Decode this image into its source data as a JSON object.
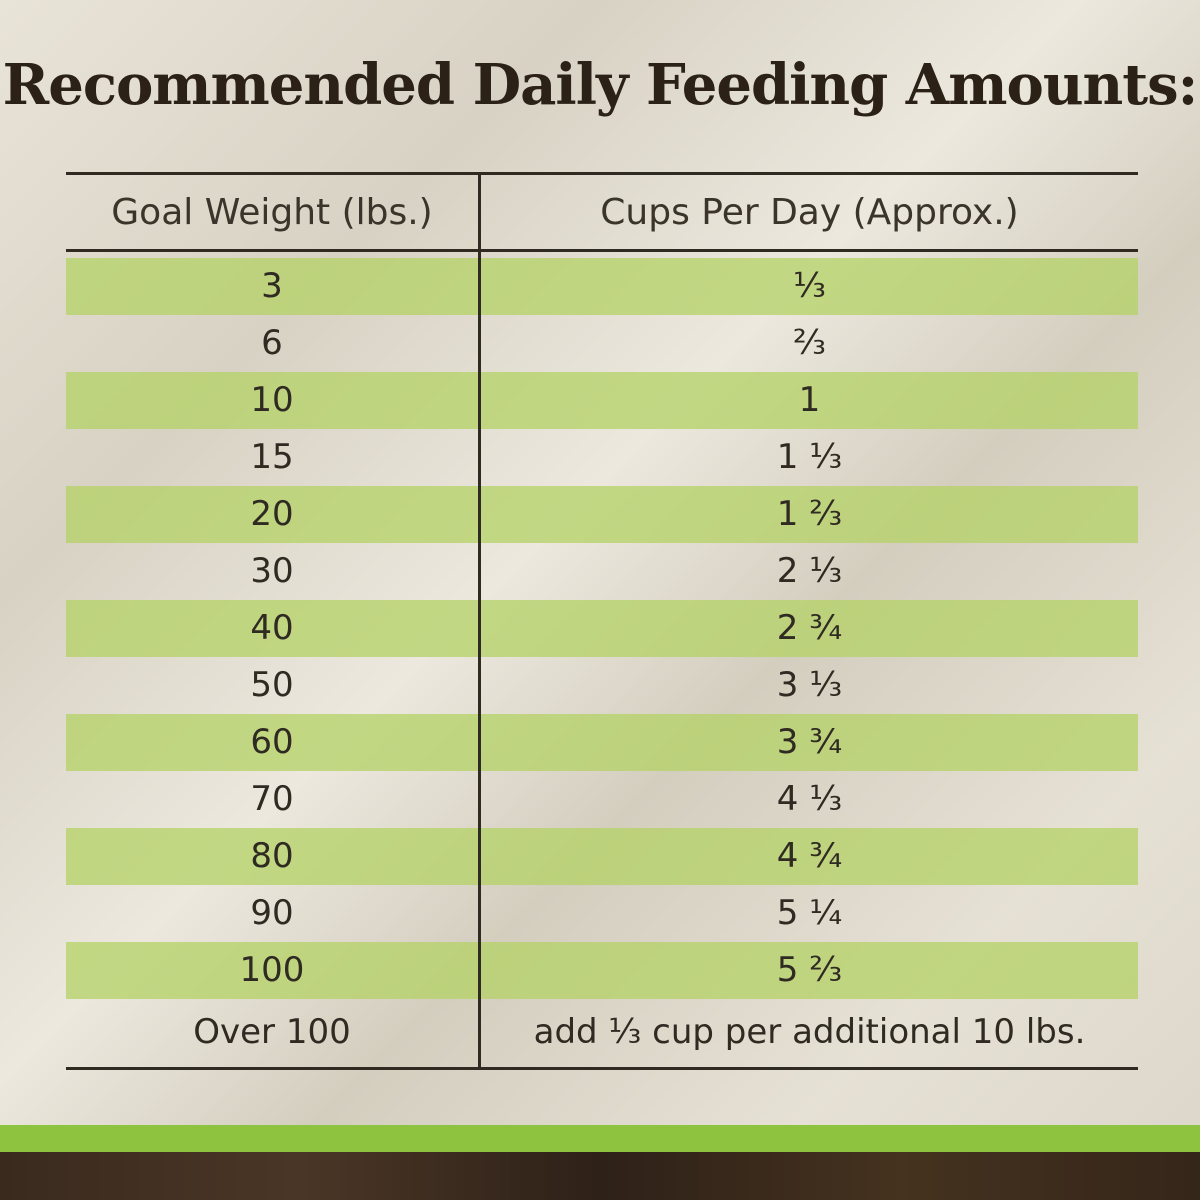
{
  "header": {
    "title": "Recommended Daily Feeding Amounts:"
  },
  "table": {
    "columns": [
      "Goal Weight (lbs.)",
      "Cups Per Day (Approx.)"
    ],
    "rows": [
      [
        "3",
        "⅓"
      ],
      [
        "6",
        "⅔"
      ],
      [
        "10",
        "1"
      ],
      [
        "15",
        "1 ⅓"
      ],
      [
        "20",
        "1 ⅔"
      ],
      [
        "30",
        "2 ⅓"
      ],
      [
        "40",
        "2 ¾"
      ],
      [
        "50",
        "3 ⅓"
      ],
      [
        "60",
        "3 ¾"
      ],
      [
        "70",
        "4 ⅓"
      ],
      [
        "80",
        "4 ¾"
      ],
      [
        "90",
        "5 ¼"
      ],
      [
        "100",
        "5 ⅔"
      ],
      [
        "Over 100",
        "add ⅓ cup per additional 10 lbs."
      ]
    ]
  }
}
